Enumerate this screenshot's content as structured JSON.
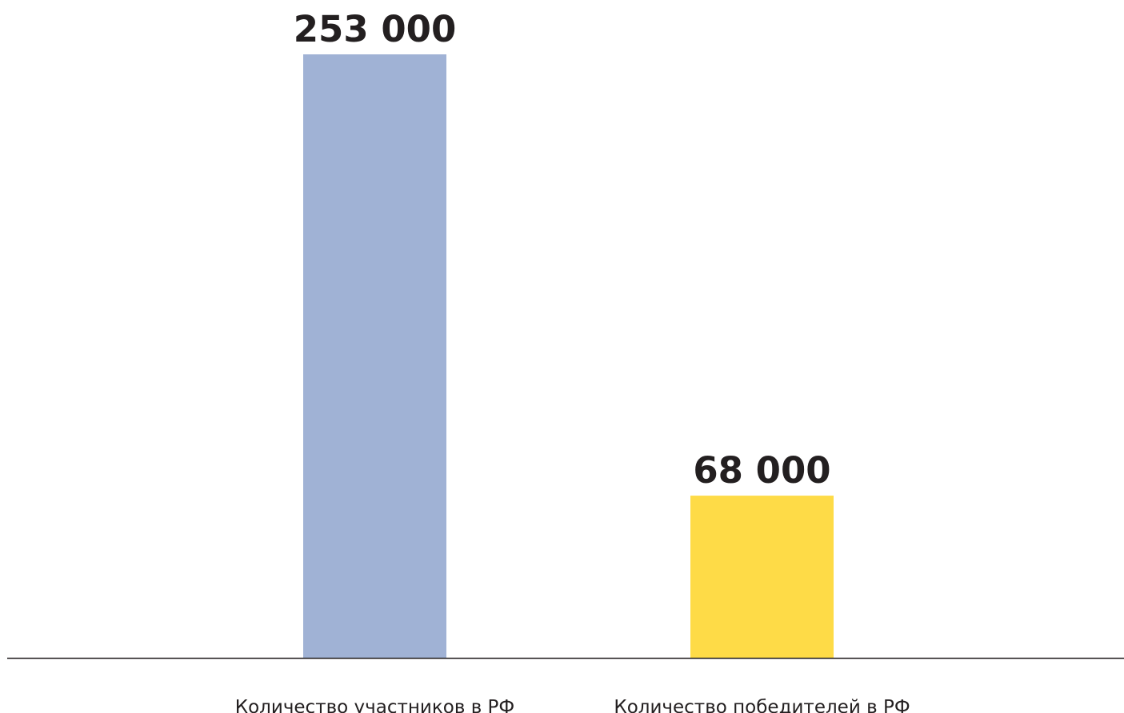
{
  "chart_data": {
    "type": "bar",
    "categories": [
      "Количество участников в РФ",
      "Количество победителей в РФ"
    ],
    "values": [
      253000,
      68000
    ],
    "value_labels": [
      "253 000",
      "68 000"
    ],
    "colors": [
      "#a0b2d5",
      "#fedb47"
    ],
    "title": "",
    "xlabel": "",
    "ylabel": "",
    "ylim": [
      0,
      253000
    ],
    "grid": false,
    "legend": "none"
  }
}
